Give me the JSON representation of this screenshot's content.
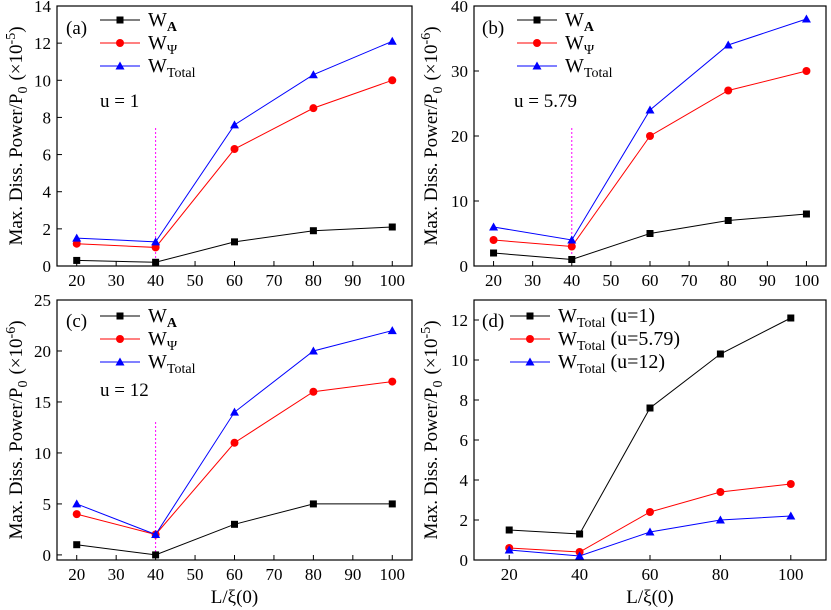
{
  "chart_data": [
    {
      "type": "line",
      "panel_label": "(a)",
      "annotation": "u = 1",
      "ylabel": "Max. Diss. Power/P",
      "ylabel_sub": "0",
      "ylabel_unit": "(×10",
      "ylabel_exp": "-5",
      "ylabel_close": ")",
      "xlim": [
        15,
        105
      ],
      "ylim": [
        0,
        14
      ],
      "xticks": [
        20,
        30,
        40,
        50,
        60,
        70,
        80,
        90,
        100
      ],
      "yticks": [
        0,
        2,
        4,
        6,
        8,
        10,
        12,
        14
      ],
      "vline_x": 40,
      "series": [
        {
          "name": "W",
          "sub": "A",
          "sub_bold": true,
          "color": "#000000",
          "marker": "square",
          "x": [
            20,
            40,
            60,
            80,
            100
          ],
          "values": [
            0.3,
            0.2,
            1.3,
            1.9,
            2.1
          ]
        },
        {
          "name": "W",
          "sub": "Ψ",
          "sub_bold": false,
          "color": "#ff0000",
          "marker": "circle",
          "x": [
            20,
            40,
            60,
            80,
            100
          ],
          "values": [
            1.2,
            1.0,
            6.3,
            8.5,
            10.0
          ]
        },
        {
          "name": "W",
          "sub": "Total",
          "sub_bold": false,
          "color": "#0000ff",
          "marker": "triangle",
          "x": [
            20,
            40,
            60,
            80,
            100
          ],
          "values": [
            1.5,
            1.3,
            7.6,
            10.3,
            12.1
          ]
        }
      ]
    },
    {
      "type": "line",
      "panel_label": "(b)",
      "annotation": "u = 5.79",
      "ylabel": "Max. Diss. Power/P",
      "ylabel_sub": "0",
      "ylabel_unit": "(×10",
      "ylabel_exp": "-6",
      "ylabel_close": ")",
      "xlim": [
        15,
        105
      ],
      "ylim": [
        0,
        40
      ],
      "xticks": [
        20,
        30,
        40,
        50,
        60,
        70,
        80,
        90,
        100
      ],
      "yticks": [
        0,
        10,
        20,
        30,
        40
      ],
      "vline_x": 40,
      "series": [
        {
          "name": "W",
          "sub": "A",
          "sub_bold": true,
          "color": "#000000",
          "marker": "square",
          "x": [
            20,
            40,
            60,
            80,
            100
          ],
          "values": [
            2,
            1,
            5,
            7,
            8
          ]
        },
        {
          "name": "W",
          "sub": "Ψ",
          "sub_bold": false,
          "color": "#ff0000",
          "marker": "circle",
          "x": [
            20,
            40,
            60,
            80,
            100
          ],
          "values": [
            4,
            3,
            20,
            27,
            30
          ]
        },
        {
          "name": "W",
          "sub": "Total",
          "sub_bold": false,
          "color": "#0000ff",
          "marker": "triangle",
          "x": [
            20,
            40,
            60,
            80,
            100
          ],
          "values": [
            6,
            4,
            24,
            34,
            38
          ]
        }
      ]
    },
    {
      "type": "line",
      "panel_label": "(c)",
      "annotation": "u = 12",
      "ylabel": "Max. Diss. Power/P",
      "ylabel_sub": "0",
      "ylabel_unit": "(×10",
      "ylabel_exp": "-6",
      "ylabel_close": ")",
      "xlabel": "L/ξ(0)",
      "xlim": [
        15,
        105
      ],
      "ylim": [
        -0.5,
        25
      ],
      "xticks": [
        20,
        30,
        40,
        50,
        60,
        70,
        80,
        90,
        100
      ],
      "yticks": [
        0,
        5,
        10,
        15,
        20,
        25
      ],
      "vline_x": 40,
      "series": [
        {
          "name": "W",
          "sub": "A",
          "sub_bold": true,
          "color": "#000000",
          "marker": "square",
          "x": [
            20,
            40,
            60,
            80,
            100
          ],
          "values": [
            1,
            0,
            3,
            5,
            5
          ]
        },
        {
          "name": "W",
          "sub": "Ψ",
          "sub_bold": false,
          "color": "#ff0000",
          "marker": "circle",
          "x": [
            20,
            40,
            60,
            80,
            100
          ],
          "values": [
            4,
            2,
            11,
            16,
            17
          ]
        },
        {
          "name": "W",
          "sub": "Total",
          "sub_bold": false,
          "color": "#0000ff",
          "marker": "triangle",
          "x": [
            20,
            40,
            60,
            80,
            100
          ],
          "values": [
            5,
            2,
            14,
            20,
            22
          ]
        }
      ]
    },
    {
      "type": "line",
      "panel_label": "(d)",
      "annotation": "",
      "ylabel": "Max. Diss. Power/P",
      "ylabel_sub": "0",
      "ylabel_unit": "(×10",
      "ylabel_exp": "-5",
      "ylabel_close": ")",
      "xlabel": "L/ξ(0)",
      "xlim": [
        10,
        110
      ],
      "ylim": [
        0,
        13
      ],
      "xticks": [
        20,
        40,
        60,
        80,
        100
      ],
      "yticks": [
        0,
        2,
        4,
        6,
        8,
        10,
        12
      ],
      "vline_x": null,
      "series": [
        {
          "name": "W",
          "sub": "Total",
          "suffix": " (u=1)",
          "sub_bold": false,
          "color": "#000000",
          "marker": "square",
          "x": [
            20,
            40,
            60,
            80,
            100
          ],
          "values": [
            1.5,
            1.3,
            7.6,
            10.3,
            12.1
          ]
        },
        {
          "name": "W",
          "sub": "Total",
          "suffix": " (u=5.79)",
          "sub_bold": false,
          "color": "#ff0000",
          "marker": "circle",
          "x": [
            20,
            40,
            60,
            80,
            100
          ],
          "values": [
            0.6,
            0.4,
            2.4,
            3.4,
            3.8
          ]
        },
        {
          "name": "W",
          "sub": "Total",
          "suffix": " (u=12)",
          "sub_bold": false,
          "color": "#0000ff",
          "marker": "triangle",
          "x": [
            20,
            40,
            60,
            80,
            100
          ],
          "values": [
            0.5,
            0.2,
            1.4,
            2.0,
            2.2
          ]
        }
      ]
    }
  ]
}
